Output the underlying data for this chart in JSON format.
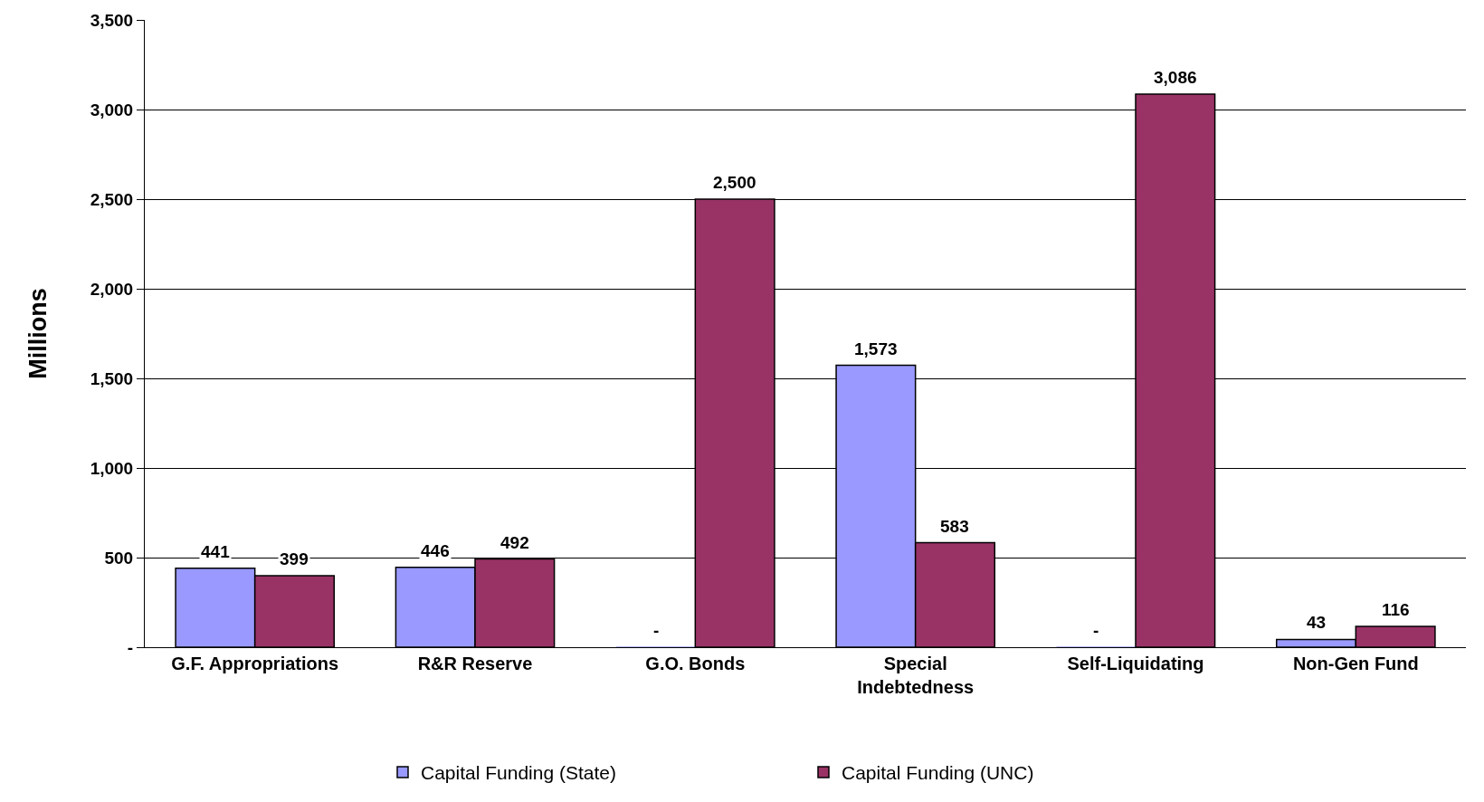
{
  "chart_data": {
    "type": "bar",
    "ylabel": "Millions",
    "categories": [
      "G.F. Appropriations",
      "R&R Reserve",
      "G.O. Bonds",
      "Special\nIndebtedness",
      "Self-Liquidating",
      "Non-Gen Fund"
    ],
    "series": [
      {
        "name": "Capital Funding (State)",
        "color": "#9999ff",
        "values": [
          441,
          446,
          0,
          1573,
          0,
          43
        ],
        "value_labels": [
          "441",
          "446",
          "-",
          "1,573",
          "-",
          "43"
        ]
      },
      {
        "name": "Capital Funding (UNC)",
        "color": "#993366",
        "values": [
          399,
          492,
          2500,
          583,
          3086,
          116
        ],
        "value_labels": [
          "399",
          "492",
          "2,500",
          "583",
          "3,086",
          "116"
        ]
      }
    ],
    "ylim": [
      0,
      3500
    ],
    "yticks": [
      {
        "value": 0,
        "label": "-"
      },
      500,
      {
        "value": 1000,
        "label": "1,000"
      },
      {
        "value": 1500,
        "label": "1,500"
      },
      {
        "value": 2000,
        "label": "2,000"
      },
      {
        "value": 2500,
        "label": "2,500"
      },
      {
        "value": 3000,
        "label": "3,000"
      },
      {
        "value": 3500,
        "label": "3,500"
      }
    ],
    "grid": "y",
    "legend": "bottom"
  }
}
